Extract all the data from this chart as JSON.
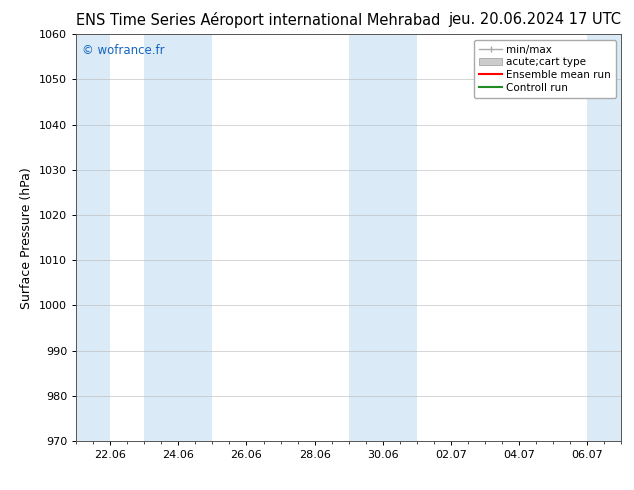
{
  "title_left": "ENS Time Series Aéroport international Mehrabad",
  "title_right": "jeu. 20.06.2024 17 UTC",
  "ylabel": "Surface Pressure (hPa)",
  "ylim": [
    970,
    1060
  ],
  "yticks": [
    970,
    980,
    990,
    1000,
    1010,
    1020,
    1030,
    1040,
    1050,
    1060
  ],
  "xtick_labels": [
    "22.06",
    "24.06",
    "26.06",
    "28.06",
    "30.06",
    "02.07",
    "04.07",
    "06.07"
  ],
  "xtick_positions": [
    1,
    3,
    5,
    7,
    9,
    11,
    13,
    15
  ],
  "xmin": 0,
  "xmax": 16,
  "watermark": "© wofrance.fr",
  "watermark_color": "#1565C0",
  "background_color": "#ffffff",
  "plot_bg_color": "#ffffff",
  "shaded_bands": [
    {
      "x_start": 0.0,
      "x_end": 1.0,
      "color": "#daeaf7"
    },
    {
      "x_start": 2.0,
      "x_end": 4.0,
      "color": "#daeaf7"
    },
    {
      "x_start": 8.0,
      "x_end": 10.0,
      "color": "#daeaf7"
    },
    {
      "x_start": 15.0,
      "x_end": 16.0,
      "color": "#daeaf7"
    }
  ],
  "legend_minmax_color": "#aaaaaa",
  "legend_carttype_color": "#cccccc",
  "legend_ens_color": "#ff0000",
  "legend_ctrl_color": "#228B22",
  "grid_color": "#bbbbbb",
  "grid_alpha": 0.7,
  "title_fontsize": 10.5,
  "ylabel_fontsize": 9,
  "tick_fontsize": 8,
  "watermark_fontsize": 8.5,
  "legend_fontsize": 7.5
}
